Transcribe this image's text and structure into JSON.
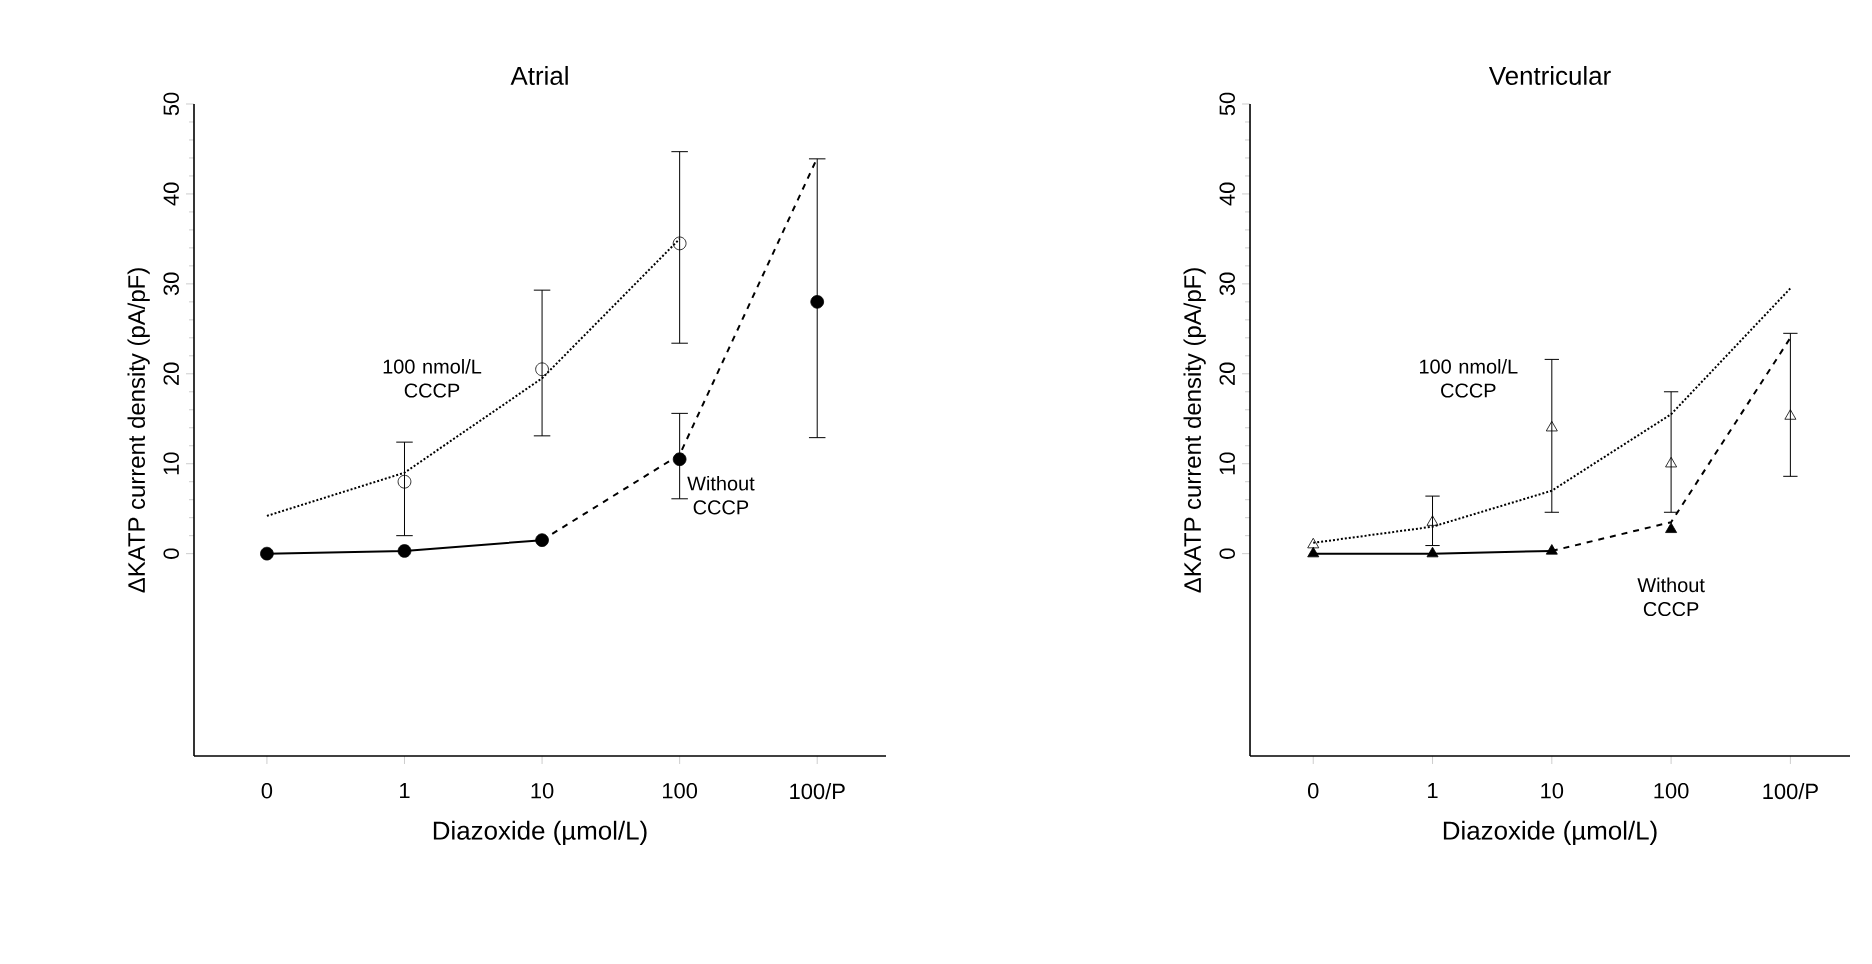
{
  "chart_data": [
    {
      "type": "scatter",
      "title": "Atrial",
      "xlabel": "Diazoxide (µmol/L)",
      "ylabel": "ΔKATP current density (pA/pF)",
      "categories": [
        "0",
        "1",
        "10",
        "100",
        "100/P"
      ],
      "ylim": [
        -22.5,
        50
      ],
      "yticks": [
        0,
        10,
        20,
        30,
        40,
        50
      ],
      "series": [
        {
          "type": "line",
          "color": "#000000",
          "line_style": "dotted",
          "marker": "none",
          "values": [
            4.2,
            9,
            19.5,
            35,
            null
          ]
        },
        {
          "type": "line",
          "color": "#000000",
          "line_style": "solid",
          "marker": "none",
          "values": [
            0,
            0.3,
            1.5,
            null,
            null
          ]
        },
        {
          "type": "line",
          "color": "#000000",
          "line_style": "dashed",
          "marker": "none",
          "values": [
            null,
            null,
            1.5,
            11,
            44
          ]
        },
        {
          "name": "100 nmol/L CCCP",
          "color": "#000000",
          "marker": "circle",
          "values": [
            null,
            8,
            20.5,
            34.5,
            null
          ],
          "errors": [
            null,
            [
              2,
              12.4
            ],
            [
              13.1,
              29.3
            ],
            [
              23.4,
              44.7
            ],
            null
          ]
        },
        {
          "name": "Without CCCP",
          "color": "#000000",
          "marker": "circle",
          "values": [
            0,
            0.3,
            1.5,
            10.5,
            28
          ],
          "errors": [
            null,
            null,
            null,
            [
              6.1,
              15.6
            ],
            [
              12.9,
              43.9
            ]
          ]
        }
      ]
    },
    {
      "type": "scatter",
      "title": "Ventricular",
      "xlabel": "Diazoxide (µmol/L)",
      "ylabel": "ΔKATP current density (pA/pF)",
      "categories": [
        "0",
        "1",
        "10",
        "100",
        "100/P"
      ],
      "ylim": [
        -22.5,
        50
      ],
      "yticks": [
        0,
        10,
        20,
        30,
        40,
        50
      ],
      "series": [
        {
          "type": "line",
          "color": "#000000",
          "line_style": "dotted",
          "marker": "none",
          "values": [
            1.2,
            3,
            7,
            15.5,
            29.5
          ]
        },
        {
          "type": "line",
          "color": "#000000",
          "line_style": "solid",
          "marker": "none",
          "values": [
            0,
            0,
            0.3,
            null,
            null
          ]
        },
        {
          "type": "line",
          "color": "#000000",
          "line_style": "dashed",
          "marker": "none",
          "values": [
            null,
            null,
            0.3,
            3.5,
            24
          ]
        },
        {
          "name": "100 nmol/L CCCP",
          "color": "#000000",
          "marker": "triangle",
          "values": [
            1,
            3.5,
            14,
            10,
            15.3
          ],
          "errors": [
            null,
            [
              0.9,
              6.4
            ],
            [
              4.6,
              21.6
            ],
            [
              4.6,
              18
            ],
            [
              8.6,
              24.5
            ]
          ]
        },
        {
          "name": "Without CCCP",
          "color": "#000000",
          "marker": "triangle",
          "values": [
            0,
            0,
            0.3,
            2.7,
            null
          ]
        }
      ]
    }
  ]
}
